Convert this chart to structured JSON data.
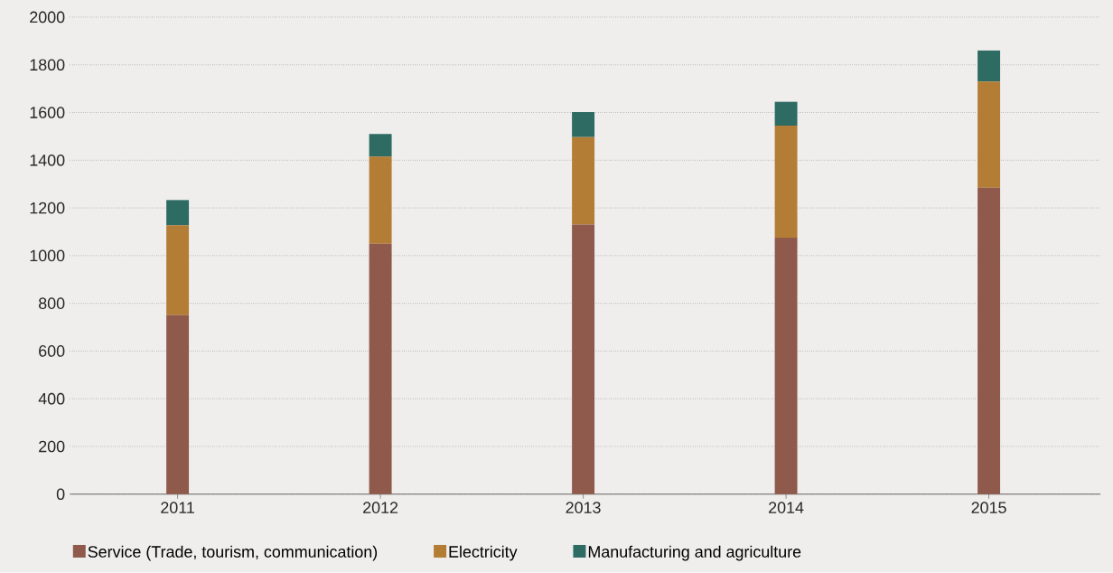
{
  "chart_data": {
    "type": "bar",
    "stacked": true,
    "categories": [
      "2011",
      "2012",
      "2013",
      "2014",
      "2015"
    ],
    "series": [
      {
        "name": "Service (Trade, tourism, communication)",
        "color": "#8f5a4c",
        "values": [
          750,
          1050,
          1130,
          1075,
          1285
        ]
      },
      {
        "name": "Electricity",
        "color": "#b37d36",
        "values": [
          377,
          365,
          367,
          470,
          445
        ]
      },
      {
        "name": "Manufacturing and agriculture",
        "color": "#2e6b63",
        "values": [
          106,
          95,
          105,
          100,
          130
        ]
      }
    ],
    "ylim": [
      0,
      2000
    ],
    "yticks": [
      0,
      200,
      400,
      600,
      800,
      1000,
      1200,
      1400,
      1600,
      1800,
      2000
    ],
    "grid": "y",
    "legend": "bottom"
  }
}
